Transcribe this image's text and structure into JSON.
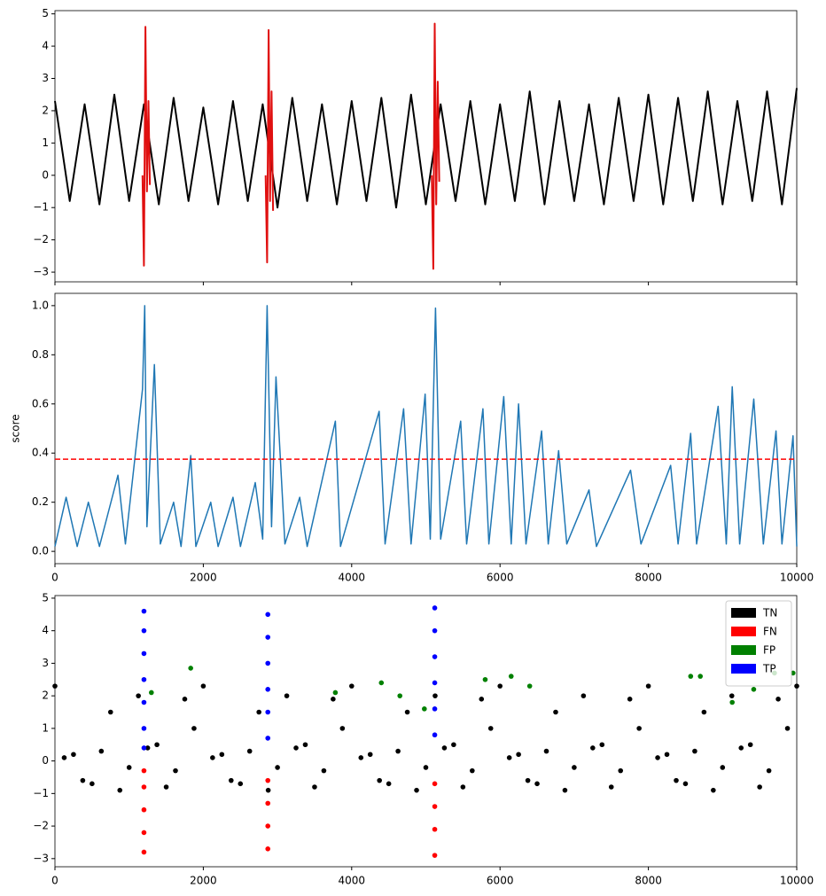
{
  "chart_data": [
    {
      "type": "line",
      "xlim": [
        0,
        10000
      ],
      "xticks": [
        0,
        2000,
        4000,
        6000,
        8000,
        10000
      ],
      "xtick_labels": false,
      "ylim": [
        -3.3,
        5.1
      ],
      "yticks": [
        {
          "value": -3,
          "label": "−3"
        },
        {
          "value": -2,
          "label": "−2"
        },
        {
          "value": -1,
          "label": "−1"
        },
        0,
        1,
        2,
        3,
        4,
        5
      ],
      "series": [
        {
          "color": "#000000",
          "x": [
            0,
            200,
            400,
            600,
            800,
            1000,
            1200,
            1400,
            1600,
            1800,
            2000,
            2200,
            2400,
            2600,
            2800,
            3000,
            3200,
            3400,
            3600,
            3800,
            4000,
            4200,
            4400,
            4600,
            4800,
            5000,
            5200,
            5400,
            5600,
            5800,
            6000,
            6200,
            6400,
            6600,
            6800,
            7000,
            7200,
            7400,
            7600,
            7800,
            8000,
            8200,
            8400,
            8600,
            8800,
            9000,
            9200,
            9400,
            9600,
            9800,
            10000
          ],
          "values": [
            2.3,
            -0.8,
            2.2,
            -0.9,
            2.5,
            -0.8,
            2.2,
            -0.9,
            2.4,
            -0.8,
            2.1,
            -0.9,
            2.3,
            -0.8,
            2.2,
            -1.0,
            2.4,
            -0.8,
            2.2,
            -0.9,
            2.3,
            -0.8,
            2.4,
            -1.0,
            2.5,
            -0.9,
            2.2,
            -0.8,
            2.3,
            -0.9,
            2.2,
            -0.8,
            2.6,
            -0.9,
            2.3,
            -0.8,
            2.2,
            -0.9,
            2.4,
            -0.8,
            2.5,
            -0.9,
            2.4,
            -0.8,
            2.6,
            -0.9,
            2.3,
            -0.8,
            2.6,
            -0.9,
            2.7
          ]
        },
        {
          "color": "#e01010",
          "x": [
            1180,
            1200,
            1220,
            1240,
            1260,
            1280,
            2000,
            2840,
            2860,
            2880,
            2900,
            2920,
            2940,
            4000,
            5080,
            5100,
            5120,
            5140,
            5160,
            5180
          ],
          "values": [
            0,
            -2.8,
            4.6,
            -0.5,
            2.3,
            -0.3,
            null,
            0,
            -2.7,
            4.5,
            -0.8,
            2.6,
            -1.1,
            null,
            0,
            -2.9,
            4.7,
            -0.9,
            2.9,
            -0.2
          ]
        }
      ]
    },
    {
      "type": "line",
      "y_label": "score",
      "xlim": [
        0,
        10000
      ],
      "xticks": [
        0,
        2000,
        4000,
        6000,
        8000,
        10000
      ],
      "xtick_labels": true,
      "ylim": [
        -0.05,
        1.05
      ],
      "yticks": [
        {
          "value": 0,
          "label": "0.0"
        },
        0.2,
        0.4,
        0.6,
        0.8,
        {
          "value": 1,
          "label": "1.0"
        }
      ],
      "threshold": 0.375,
      "threshold_color": "#ff0000",
      "series": [
        {
          "color": "#1f77b4",
          "x": [
            0,
            150,
            300,
            450,
            600,
            850,
            950,
            1180,
            1210,
            1240,
            1340,
            1420,
            1600,
            1700,
            1830,
            1900,
            2100,
            2200,
            2400,
            2500,
            2700,
            2800,
            2860,
            2920,
            2980,
            3100,
            3300,
            3400,
            3780,
            3850,
            4370,
            4450,
            4700,
            4800,
            4990,
            5060,
            5130,
            5200,
            5470,
            5550,
            5770,
            5850,
            6050,
            6150,
            6250,
            6350,
            6560,
            6650,
            6790,
            6900,
            7200,
            7300,
            7760,
            7900,
            8300,
            8400,
            8570,
            8650,
            8940,
            9050,
            9130,
            9230,
            9420,
            9550,
            9720,
            9800,
            9950,
            10000
          ],
          "values": [
            0.02,
            0.22,
            0.02,
            0.2,
            0.02,
            0.31,
            0.03,
            0.66,
            1.0,
            0.1,
            0.76,
            0.03,
            0.2,
            0.02,
            0.39,
            0.02,
            0.2,
            0.02,
            0.22,
            0.02,
            0.28,
            0.05,
            1.0,
            0.1,
            0.71,
            0.03,
            0.22,
            0.02,
            0.53,
            0.02,
            0.57,
            0.03,
            0.58,
            0.03,
            0.64,
            0.05,
            0.99,
            0.05,
            0.53,
            0.03,
            0.58,
            0.03,
            0.63,
            0.03,
            0.6,
            0.03,
            0.49,
            0.03,
            0.41,
            0.03,
            0.25,
            0.02,
            0.33,
            0.03,
            0.35,
            0.03,
            0.48,
            0.03,
            0.59,
            0.03,
            0.67,
            0.03,
            0.62,
            0.03,
            0.49,
            0.03,
            0.47,
            0.02
          ]
        }
      ]
    },
    {
      "type": "scatter",
      "legend": "upper right",
      "xlim": [
        0,
        10000
      ],
      "xticks": [
        0,
        2000,
        4000,
        6000,
        8000,
        10000
      ],
      "xtick_labels": true,
      "ylim": [
        -3.25,
        5.08
      ],
      "yticks": [
        {
          "value": -3,
          "label": "−3"
        },
        {
          "value": -2,
          "label": "−2"
        },
        {
          "value": -1,
          "label": "−1"
        },
        0,
        1,
        2,
        3,
        4,
        5
      ],
      "series": [
        {
          "name": "TN",
          "color": "#000000",
          "x": [
            0,
            250,
            500,
            750,
            1000,
            1250,
            1500,
            1750,
            2000,
            2250,
            2500,
            2750,
            3000,
            3250,
            3500,
            3750,
            4000,
            4250,
            4500,
            4750,
            5000,
            5250,
            5500,
            5750,
            6000,
            6250,
            6500,
            6750,
            7000,
            7250,
            7500,
            7750,
            8000,
            8250,
            8500,
            8750,
            9000,
            9250,
            9500,
            9750,
            10000,
            125,
            375,
            625,
            875,
            1125,
            1375,
            1625,
            1875,
            2125,
            2375,
            2625,
            2875,
            3125,
            3375,
            3625,
            3875,
            4125,
            4375,
            4625,
            4875,
            5125,
            5375,
            5625,
            5875,
            6125,
            6375,
            6625,
            6875,
            7125,
            7375,
            7625,
            7875,
            8125,
            8375,
            8625,
            8875,
            9125,
            9375,
            9625,
            9875
          ],
          "values": [
            2.3,
            0.2,
            -0.7,
            1.5,
            -0.2,
            0.4,
            -0.8,
            1.9,
            2.3,
            0.2,
            -0.7,
            1.5,
            -0.2,
            0.4,
            -0.8,
            1.9,
            2.3,
            0.2,
            -0.7,
            1.5,
            -0.2,
            0.4,
            -0.8,
            1.9,
            2.3,
            0.2,
            -0.7,
            1.5,
            -0.2,
            0.4,
            -0.8,
            1.9,
            2.3,
            0.2,
            -0.7,
            1.5,
            -0.2,
            0.4,
            -0.8,
            1.9,
            2.3,
            0.1,
            -0.6,
            0.3,
            -0.9,
            2.0,
            0.5,
            -0.3,
            1.0,
            0.1,
            -0.6,
            0.3,
            -0.9,
            2.0,
            0.5,
            -0.3,
            1.0,
            0.1,
            -0.6,
            0.3,
            -0.9,
            2.0,
            0.5,
            -0.3,
            1.0,
            0.1,
            -0.6,
            0.3,
            -0.9,
            2.0,
            0.5,
            -0.3,
            1.0,
            0.1,
            -0.6,
            0.3,
            -0.9,
            2.0,
            0.5,
            -0.3,
            1.0
          ]
        },
        {
          "name": "FN",
          "color": "#ff0000",
          "x": [
            1200,
            1200,
            1200,
            1200,
            1200,
            2870,
            2870,
            2870,
            2870,
            5120,
            5120,
            5120,
            5120
          ],
          "values": [
            -2.8,
            -2.2,
            -1.5,
            -0.8,
            -0.3,
            -2.7,
            -2.0,
            -1.3,
            -0.6,
            -2.9,
            -2.1,
            -1.4,
            -0.7
          ]
        },
        {
          "name": "FP",
          "color": "#008000",
          "x": [
            1830,
            1300,
            3780,
            4400,
            4650,
            4980,
            5800,
            6150,
            6400,
            8570,
            8700,
            9130,
            9420,
            9700,
            9950
          ],
          "values": [
            2.85,
            2.1,
            2.1,
            2.4,
            2.0,
            1.6,
            2.5,
            2.6,
            2.3,
            2.6,
            2.6,
            1.8,
            2.2,
            2.7,
            2.7
          ]
        },
        {
          "name": "TP",
          "color": "#0000ff",
          "x": [
            1200,
            1200,
            1200,
            1200,
            1200,
            1200,
            1200,
            2870,
            2870,
            2870,
            2870,
            2870,
            2870,
            5120,
            5120,
            5120,
            5120,
            5120,
            5120
          ],
          "values": [
            4.6,
            4.0,
            3.3,
            2.5,
            1.8,
            1.0,
            0.4,
            4.5,
            3.8,
            3.0,
            2.2,
            1.5,
            0.7,
            4.7,
            4.0,
            3.2,
            2.4,
            1.6,
            0.8
          ]
        }
      ]
    }
  ]
}
